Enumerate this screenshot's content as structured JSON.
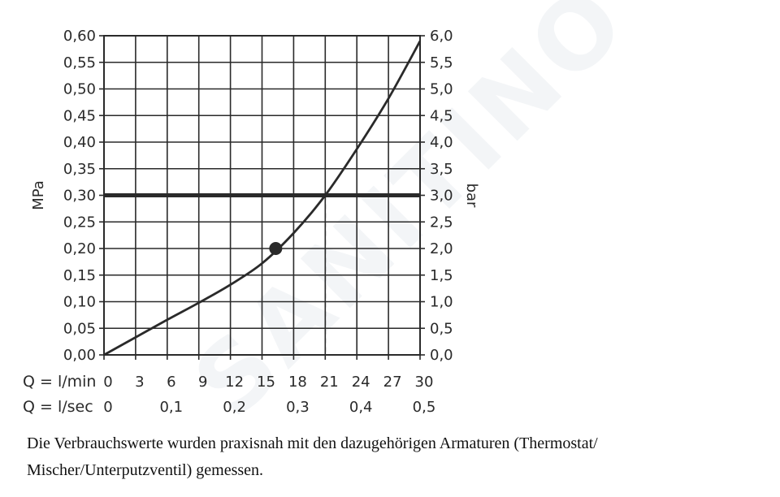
{
  "chart_data": {
    "type": "line",
    "ylabel_left": "MPa",
    "ylabel_right": "bar",
    "xlabel_rows": [
      {
        "label": "Q = l/min",
        "ticks": [
          "0",
          "3",
          "6",
          "9",
          "12",
          "15",
          "18",
          "21",
          "24",
          "27",
          "30"
        ]
      },
      {
        "label": "Q = l/sec",
        "ticks": [
          "0",
          "0,1",
          "0,2",
          "0,3",
          "0,4",
          "0,5"
        ]
      }
    ],
    "x_unit": "l/min",
    "xlim": [
      0,
      30
    ],
    "ylim_left": [
      0,
      0.6
    ],
    "ylim_right": [
      0,
      6.0
    ],
    "y_ticks_left": [
      "0,00",
      "0,05",
      "0,10",
      "0,15",
      "0,20",
      "0,25",
      "0,30",
      "0,35",
      "0,40",
      "0,45",
      "0,50",
      "0,55",
      "0,60"
    ],
    "y_ticks_right": [
      "0,0",
      "0,5",
      "1,0",
      "1,5",
      "2,0",
      "2,5",
      "3,0",
      "3,5",
      "4,0",
      "4,5",
      "5,0",
      "5,5",
      "6,0"
    ],
    "grid": true,
    "series": [
      {
        "x": [
          0,
          3,
          6,
          9,
          12,
          15,
          18,
          21,
          24,
          27,
          30
        ],
        "y": [
          0.0,
          0.033,
          0.066,
          0.098,
          0.132,
          0.172,
          0.229,
          0.3,
          0.387,
          0.482,
          0.59
        ],
        "color": "#2a2a2a"
      }
    ],
    "reference_line": {
      "y": 0.3,
      "color": "#2a2a2a"
    },
    "marker_point": {
      "x": 16.3,
      "y": 0.2
    },
    "dashed_drop": {
      "x": 21,
      "from_y": 0.3,
      "to_y": 0.0
    }
  },
  "watermark": "SANITINO",
  "caption": "Die Verbrauchswerte wurden praxisnah mit den dazugehörigen Armaturen (Thermostat/ Mischer/Unterputzventil) gemessen."
}
